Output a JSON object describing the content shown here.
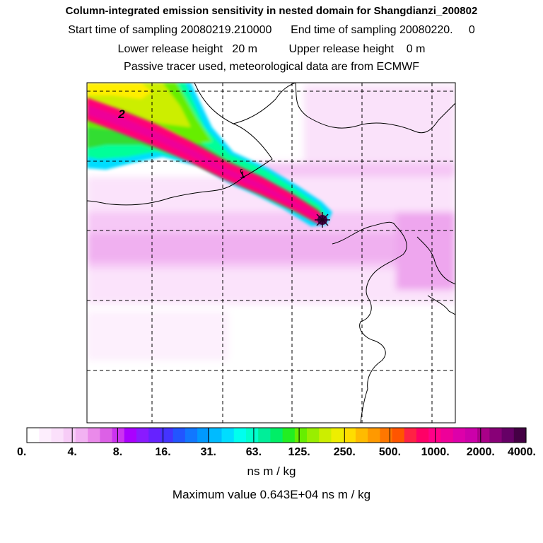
{
  "header": {
    "title": "Column-integrated emission sensitivity in nested domain for Shangdianzi_200802",
    "sampling_line": "Start time of sampling 20080219.210000      End time of sampling 20080220.     0",
    "release_line": "Lower release height   20 m          Upper release height    0 m",
    "tracer_line": "Passive tracer used, meteorological data are from ECMWF"
  },
  "chart_data": {
    "type": "heatmap",
    "title": "Column-integrated emission sensitivity in nested domain for Shangdianzi_200802",
    "receptor": "Shangdianzi",
    "contour_labels": [
      "2",
      "1"
    ],
    "colorbar": {
      "tick_labels": [
        "0.",
        "4.",
        "8.",
        "16.",
        "31.",
        "63.",
        "125.",
        "250.",
        "500.",
        "1000.",
        "2000.",
        "4000."
      ],
      "unit": "ns m / kg",
      "colors": [
        "#ffffff",
        "#fdeefd",
        "#fbe0fb",
        "#f7ccf7",
        "#f2b2f2",
        "#ea8aea",
        "#dc60e6",
        "#cc33f0",
        "#aa00ff",
        "#8a1aff",
        "#6622ff",
        "#4433ff",
        "#2255ff",
        "#1177ff",
        "#0099ff",
        "#00bbff",
        "#00ddff",
        "#00ffee",
        "#00ffcc",
        "#00ee99",
        "#00ee66",
        "#22ee22",
        "#66ee00",
        "#99ee00",
        "#ccee00",
        "#eeee00",
        "#ffdd00",
        "#ffbb00",
        "#ff9900",
        "#ff7700",
        "#ff5500",
        "#ff2244",
        "#ff0066",
        "#ff0088",
        "#ee0099",
        "#dd00aa",
        "#cc00aa",
        "#aa0088",
        "#880077",
        "#660066",
        "#440044"
      ]
    },
    "max_value_label": "Maximum value  0.643E+04 ns m / kg"
  }
}
